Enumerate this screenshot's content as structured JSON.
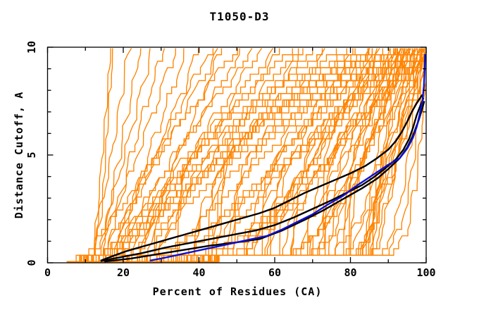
{
  "chart_data": {
    "type": "line",
    "title": "T1050-D3",
    "xlabel": "Percent of Residues (CA)",
    "ylabel": "Distance Cutoff, A",
    "xlim": [
      0,
      100
    ],
    "ylim": [
      0,
      10
    ],
    "x_major_ticks": [
      0,
      20,
      40,
      60,
      80,
      100
    ],
    "x_minor_ticks": [
      10,
      30,
      50,
      70,
      90
    ],
    "y_major_ticks": [
      0,
      5,
      10
    ],
    "y_minor_ticks": [
      1,
      2,
      3,
      4,
      6,
      7,
      8,
      9
    ],
    "grid": false,
    "legend": "none",
    "background": "#ffffff",
    "frame_color": "#000000",
    "colors": {
      "model_ensemble": "#ff8400",
      "reference_curves": "#000000",
      "highlighted_curve": "#0f0fd0"
    },
    "series": [
      {
        "name": "black-curve-1",
        "color": "#000000",
        "width": 2.4,
        "points": [
          [
            14,
            0.1
          ],
          [
            17,
            0.3
          ],
          [
            21,
            0.55
          ],
          [
            26,
            0.8
          ],
          [
            31,
            1.05
          ],
          [
            36,
            1.3
          ],
          [
            41,
            1.55
          ],
          [
            46,
            1.8
          ],
          [
            51,
            2.05
          ],
          [
            56,
            2.3
          ],
          [
            60,
            2.55
          ],
          [
            64,
            2.9
          ],
          [
            68,
            3.25
          ],
          [
            72,
            3.55
          ],
          [
            76,
            3.85
          ],
          [
            80,
            4.15
          ],
          [
            84,
            4.5
          ],
          [
            87,
            4.85
          ],
          [
            90,
            5.25
          ],
          [
            92,
            5.65
          ],
          [
            93.5,
            6.05
          ],
          [
            95,
            6.55
          ],
          [
            96.2,
            7.0
          ],
          [
            97.5,
            7.4
          ],
          [
            99,
            7.8
          ]
        ]
      },
      {
        "name": "black-curve-2",
        "color": "#000000",
        "width": 2.4,
        "points": [
          [
            14,
            0.08
          ],
          [
            19,
            0.25
          ],
          [
            25,
            0.45
          ],
          [
            31,
            0.7
          ],
          [
            37,
            0.9
          ],
          [
            43,
            1.1
          ],
          [
            49,
            1.3
          ],
          [
            55,
            1.5
          ],
          [
            60,
            1.75
          ],
          [
            65,
            2.1
          ],
          [
            70,
            2.5
          ],
          [
            75,
            2.9
          ],
          [
            79,
            3.25
          ],
          [
            83,
            3.6
          ],
          [
            86,
            3.95
          ],
          [
            89,
            4.35
          ],
          [
            92,
            4.8
          ],
          [
            94,
            5.25
          ],
          [
            95.5,
            5.75
          ],
          [
            96.5,
            6.25
          ],
          [
            97.5,
            6.85
          ],
          [
            98.6,
            7.35
          ],
          [
            99.3,
            7.65
          ]
        ]
      },
      {
        "name": "black-curve-3",
        "color": "#000000",
        "width": 2.4,
        "points": [
          [
            15,
            0.06
          ],
          [
            22,
            0.2
          ],
          [
            29,
            0.4
          ],
          [
            36,
            0.6
          ],
          [
            43,
            0.8
          ],
          [
            50,
            0.95
          ],
          [
            56,
            1.1
          ],
          [
            62,
            1.5
          ],
          [
            68,
            2.0
          ],
          [
            73,
            2.45
          ],
          [
            78,
            2.95
          ],
          [
            83,
            3.45
          ],
          [
            87,
            3.9
          ],
          [
            90,
            4.35
          ],
          [
            93,
            4.85
          ],
          [
            95,
            5.35
          ],
          [
            96.5,
            5.9
          ],
          [
            97.8,
            6.5
          ],
          [
            98.8,
            7.05
          ],
          [
            99.5,
            7.5
          ]
        ]
      },
      {
        "name": "blue-curve",
        "color": "#0f0fd0",
        "width": 2.4,
        "points": [
          [
            27,
            0.1
          ],
          [
            30,
            0.2
          ],
          [
            34,
            0.35
          ],
          [
            38,
            0.5
          ],
          [
            42,
            0.65
          ],
          [
            46,
            0.8
          ],
          [
            50,
            0.95
          ],
          [
            54,
            1.1
          ],
          [
            58,
            1.25
          ],
          [
            62,
            1.55
          ],
          [
            66,
            1.9
          ],
          [
            70,
            2.25
          ],
          [
            74,
            2.7
          ],
          [
            78,
            3.1
          ],
          [
            81,
            3.5
          ],
          [
            84,
            3.85
          ],
          [
            87,
            4.2
          ],
          [
            90,
            4.55
          ],
          [
            93,
            4.85
          ],
          [
            95,
            5.3
          ],
          [
            96.5,
            5.8
          ],
          [
            97.5,
            6.3
          ],
          [
            98.3,
            6.9
          ],
          [
            99,
            7.5
          ],
          [
            99.4,
            8.2
          ],
          [
            99.6,
            9.0
          ],
          [
            99.7,
            9.68
          ]
        ]
      }
    ],
    "model_curves": {
      "color": "#ff8400",
      "width": 1.35,
      "band_top_y": 0.5,
      "top_y": 9.6,
      "params_s_b_t_g": [
        [
          5,
          12,
          16,
          0.9
        ],
        [
          6,
          13,
          17,
          1.1
        ],
        [
          5,
          11,
          21,
          0.8
        ],
        [
          7,
          14,
          24,
          1.0
        ],
        [
          5,
          12,
          27,
          0.85
        ],
        [
          6,
          16,
          30,
          1.2
        ],
        [
          5,
          13,
          33,
          0.9
        ],
        [
          7,
          18,
          36,
          1.05
        ],
        [
          6,
          15,
          39,
          0.8
        ],
        [
          5,
          17,
          42,
          1.15
        ],
        [
          6,
          14,
          44,
          0.95
        ],
        [
          5,
          19,
          45,
          0.75
        ],
        [
          6,
          12,
          48,
          1.1
        ],
        [
          5,
          16,
          50,
          0.9
        ],
        [
          7,
          20,
          53,
          1.3
        ],
        [
          6,
          14,
          55,
          0.85
        ],
        [
          5,
          22,
          58,
          1.2
        ],
        [
          6,
          18,
          60,
          1.0
        ],
        [
          7,
          25,
          62,
          1.4
        ],
        [
          5,
          15,
          64,
          0.9
        ],
        [
          6,
          28,
          66,
          1.25
        ],
        [
          5,
          20,
          68,
          1.05
        ],
        [
          7,
          24,
          70,
          1.35
        ],
        [
          6,
          17,
          72,
          0.95
        ],
        [
          5,
          30,
          74,
          1.5
        ],
        [
          6,
          22,
          76,
          1.15
        ],
        [
          7,
          26,
          78,
          1.3
        ],
        [
          5,
          25,
          80,
          0.6
        ],
        [
          6,
          32,
          82,
          1.0
        ],
        [
          5,
          38,
          83,
          1.6
        ],
        [
          7,
          28,
          84,
          2.4
        ],
        [
          6,
          45,
          85,
          3.4
        ],
        [
          5,
          35,
          86,
          0.5
        ],
        [
          6,
          52,
          87,
          0.9
        ],
        [
          7,
          30,
          88,
          1.5
        ],
        [
          5,
          58,
          88,
          2.2
        ],
        [
          6,
          42,
          89,
          3.0
        ],
        [
          5,
          63,
          90,
          0.55
        ],
        [
          7,
          36,
          90,
          0.95
        ],
        [
          6,
          68,
          91,
          1.7
        ],
        [
          5,
          48,
          91,
          2.6
        ],
        [
          6,
          72,
          92,
          3.8
        ],
        [
          5,
          40,
          92,
          0.6
        ],
        [
          7,
          76,
          93,
          1.1
        ],
        [
          6,
          55,
          93,
          1.9
        ],
        [
          5,
          79,
          94,
          2.8
        ],
        [
          6,
          60,
          94,
          0.5
        ],
        [
          5,
          82,
          94,
          0.8
        ],
        [
          7,
          46,
          95,
          1.3
        ],
        [
          6,
          84,
          95,
          2.0
        ],
        [
          5,
          65,
          95,
          3.0
        ],
        [
          6,
          85,
          96,
          0.55
        ],
        [
          5,
          50,
          96,
          0.85
        ],
        [
          7,
          70,
          96,
          1.4
        ],
        [
          6,
          86,
          97,
          2.2
        ],
        [
          5,
          56,
          97,
          3.2
        ],
        [
          6,
          74,
          97,
          0.6
        ],
        [
          5,
          83,
          98,
          0.9
        ],
        [
          7,
          62,
          98,
          1.5
        ],
        [
          6,
          80,
          98,
          2.4
        ],
        [
          5,
          44,
          98,
          3.6
        ],
        [
          6,
          77,
          99,
          0.65
        ],
        [
          5,
          68,
          99,
          1.0
        ],
        [
          7,
          85,
          99,
          1.6
        ],
        [
          6,
          59,
          99,
          2.5
        ],
        [
          5,
          73,
          100,
          3.4
        ],
        [
          6,
          81,
          100,
          0.7
        ],
        [
          5,
          86,
          100,
          1.05
        ],
        [
          7,
          64,
          100,
          1.8
        ],
        [
          6,
          78,
          95,
          2.6
        ],
        [
          5,
          71,
          93,
          0.75
        ],
        [
          6,
          66,
          92,
          1.1
        ],
        [
          7,
          61,
          91,
          1.9
        ],
        [
          5,
          75,
          96,
          2.9
        ],
        [
          6,
          69,
          94,
          0.8
        ],
        [
          5,
          57,
          90,
          1.2
        ],
        [
          6,
          53,
          89,
          2.0
        ],
        [
          7,
          49,
          87,
          3.1
        ],
        [
          5,
          47,
          85,
          0.7
        ],
        [
          6,
          43,
          84,
          1.15
        ],
        [
          5,
          39,
          81,
          2.1
        ],
        [
          6,
          34,
          79,
          3.3
        ],
        [
          6,
          83,
          99,
          0.9
        ],
        [
          5,
          84,
          100,
          1.3
        ],
        [
          7,
          85,
          98,
          2.1
        ],
        [
          6,
          86,
          99,
          0.3
        ],
        [
          5,
          87,
          100,
          0.25
        ],
        [
          7,
          85,
          98,
          0.35
        ]
      ]
    }
  }
}
